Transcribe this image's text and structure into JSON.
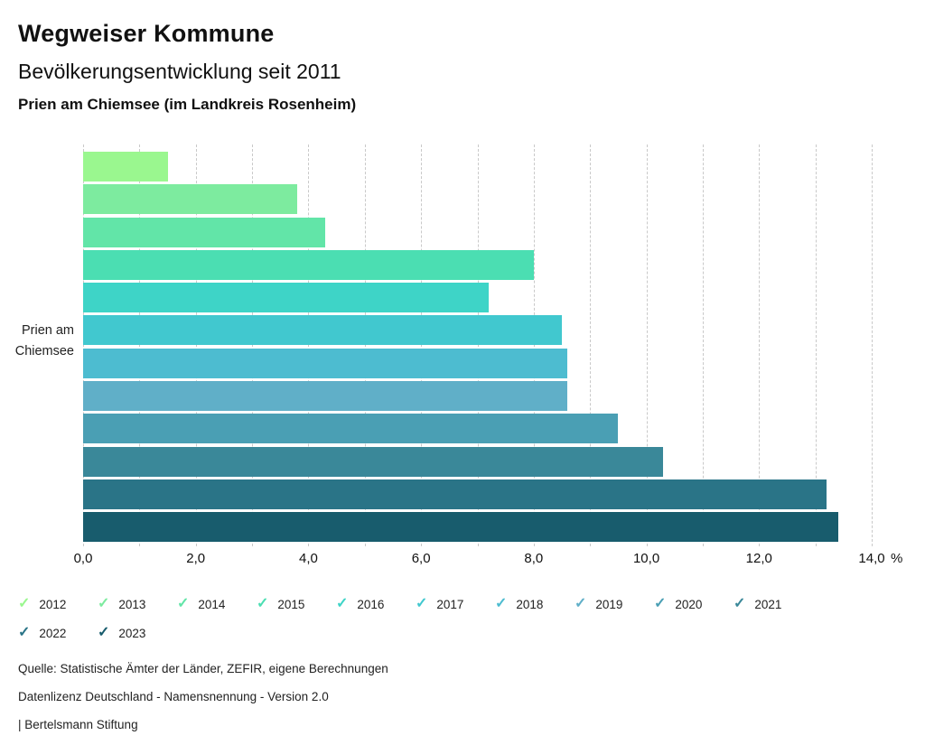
{
  "header": {
    "title": "Wegweiser Kommune",
    "subtitle": "Bevölkerungsentwicklung seit 2011",
    "location": "Prien am Chiemsee (im Landkreis Rosenheim)"
  },
  "chart_data": {
    "type": "bar",
    "orientation": "horizontal",
    "title": "Bevölkerungsentwicklung seit 2011",
    "group_label": "Prien am Chiemsee",
    "ylabel_lines": [
      "Prien am",
      "Chiemsee"
    ],
    "categories": [
      "2012",
      "2013",
      "2014",
      "2015",
      "2016",
      "2017",
      "2018",
      "2019",
      "2020",
      "2021",
      "2022",
      "2023"
    ],
    "values": [
      1.5,
      3.8,
      4.3,
      8.0,
      7.2,
      8.5,
      8.6,
      8.6,
      9.5,
      10.3,
      13.2,
      13.4
    ],
    "colors": [
      "#9af78f",
      "#7deb9f",
      "#62e5a8",
      "#4bdeb2",
      "#3ed4c7",
      "#41c8cf",
      "#4dbcd0",
      "#60afc8",
      "#4a9fb4",
      "#3a8899",
      "#2a7487",
      "#185c6d"
    ],
    "unit": "%",
    "xlim": [
      0,
      14
    ],
    "gridline_step": 1.0,
    "grid_style": "dashed-vertical",
    "x_tick_step": 2.0,
    "x_tick_labels": [
      "0,0",
      "2,0",
      "4,0",
      "6,0",
      "8,0",
      "10,0",
      "12,0",
      "14,0"
    ],
    "legend_position": "bottom"
  },
  "legend": {
    "check_icon": "✓",
    "items": [
      {
        "year": "2012",
        "color": "#9af78f"
      },
      {
        "year": "2013",
        "color": "#7deb9f"
      },
      {
        "year": "2014",
        "color": "#62e5a8"
      },
      {
        "year": "2015",
        "color": "#4bdeb2"
      },
      {
        "year": "2016",
        "color": "#3ed4c7"
      },
      {
        "year": "2017",
        "color": "#41c8cf"
      },
      {
        "year": "2018",
        "color": "#4dbcd0"
      },
      {
        "year": "2019",
        "color": "#60afc8"
      },
      {
        "year": "2020",
        "color": "#4a9fb4"
      },
      {
        "year": "2021",
        "color": "#3a8899"
      },
      {
        "year": "2022",
        "color": "#2a7487"
      },
      {
        "year": "2023",
        "color": "#185c6d"
      }
    ]
  },
  "footer": {
    "lines": [
      "Quelle: Statistische Ämter der Länder, ZEFIR, eigene Berechnungen",
      "Datenlizenz Deutschland - Namensnennung - Version 2.0",
      "| Bertelsmann Stiftung"
    ]
  }
}
